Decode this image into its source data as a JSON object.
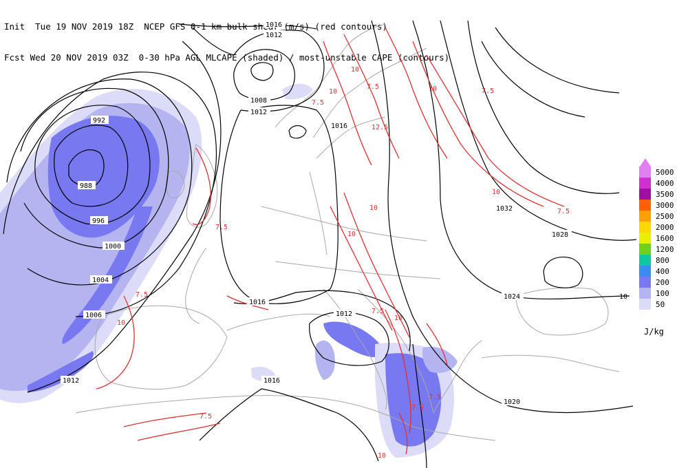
{
  "header": {
    "line1": "Init  Tue 19 NOV 2019 18Z  NCEP GFS 0-1 km bulk shear (m/s) (red contours)",
    "line2": "Fcst Wed 20 NOV 2019 03Z  0-30 hPa AGL MLCAPE (shaded) / most-unstable CAPE (contours)"
  },
  "legend": {
    "units": "J/kg",
    "levels": [
      {
        "label": "5000",
        "color": "#e080f0"
      },
      {
        "label": "4000",
        "color": "#d030d0"
      },
      {
        "label": "3500",
        "color": "#a010a0"
      },
      {
        "label": "3000",
        "color": "#ff6000"
      },
      {
        "label": "2500",
        "color": "#ffa000"
      },
      {
        "label": "2000",
        "color": "#ffd800"
      },
      {
        "label": "1600",
        "color": "#e8f000"
      },
      {
        "label": "1200",
        "color": "#70d020"
      },
      {
        "label": "800",
        "color": "#10c8a0"
      },
      {
        "label": "400",
        "color": "#3c8cf0"
      },
      {
        "label": "200",
        "color": "#7878f0"
      },
      {
        "label": "100",
        "color": "#b4b4f0"
      },
      {
        "label": "50",
        "color": "#dcdcf8"
      }
    ]
  },
  "colors": {
    "coast": "#a8a8a8",
    "contour": "#000000",
    "shear": "#e03030",
    "cape_50": "#dcdcf8",
    "cape_100": "#b4b4f0",
    "cape_200": "#7878f0"
  },
  "contour_labels": {
    "l988": "988",
    "l992": "992",
    "l996": "996",
    "l1000": "1000",
    "l1004": "1004",
    "l1006": "1006",
    "l1008": "1008",
    "l1012a": "1012",
    "l1012b": "1012",
    "l1012c": "1012",
    "l1012d": "1012",
    "l1016a": "1016",
    "l1016b": "1016",
    "l1016c": "1016",
    "l1016d": "1016",
    "l1020": "1020",
    "l1024": "1024",
    "l1028": "1028",
    "l1032": "1032",
    "l10edge": "10"
  },
  "shear_labels": {
    "s1": "10",
    "s2": "7.5",
    "s3": "10",
    "s4": "7.5",
    "s5": "12.5",
    "s6": "10",
    "s7": "10",
    "s8": "7.5",
    "s9": "10",
    "s10": "7.5",
    "s11": "10",
    "s12": "7.5",
    "s13": "10",
    "s14": "7.5",
    "s15": "7.5",
    "s16": "7.5",
    "s17": "10",
    "s18": "7.5",
    "s19": "7.5",
    "s20": "10"
  }
}
